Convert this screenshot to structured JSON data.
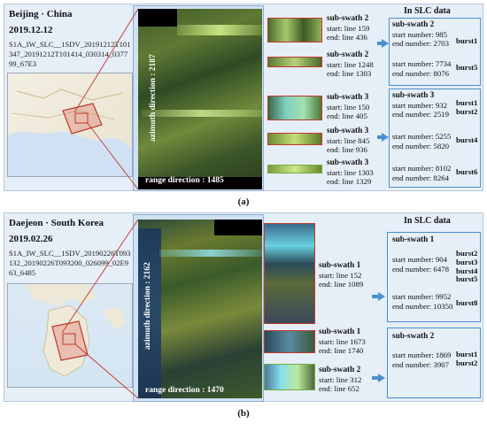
{
  "panels": [
    {
      "caption": "(a)",
      "location": "Beijing · China",
      "date": "2019.12.12",
      "filename": "S1A_IW_SLC__1SDV_20191212T101347_20191212T101414_030314_037799_67E3",
      "azimuth_label": "azimuth direction : 2187",
      "range_label": "range direction : 1485",
      "slc_title": "In SLC data",
      "subswaths": [
        {
          "title": "sub-swath 2",
          "start": "start: line 159",
          "end": "end: line 436"
        },
        {
          "title": "sub-swath 2",
          "start": "start: line 1248",
          "end": "end: line 1303"
        },
        {
          "title": "sub-swath 3",
          "start": "start: line 150",
          "end": "end: line 405"
        },
        {
          "title": "sub-swath 3",
          "start": "start: line 845",
          "end": "end: line 936"
        },
        {
          "title": "sub-swath 3",
          "start": "start: line 1303",
          "end": "end: line 1329"
        }
      ],
      "slc_groups": [
        {
          "title": "sub-swath 2",
          "entries": [
            {
              "start": "start number: 985",
              "end": "end number: 2703",
              "burst": "burst1"
            },
            {
              "start": "start number: 7734",
              "end": "end number: 8076",
              "burst": "burst5"
            }
          ]
        },
        {
          "title": "sub-swath 3",
          "entries": [
            {
              "start": "start number: 932",
              "end": "end number: 2519",
              "burst": "burst1\nburst2"
            },
            {
              "start": "start number: 5255",
              "end": "end number: 5820",
              "burst": "burst4"
            },
            {
              "start": "start number: 8102",
              "end": "end number: 8264",
              "burst": "burst6"
            }
          ]
        }
      ]
    },
    {
      "caption": "(b)",
      "location": "Daejeon · South Korea",
      "date": "2019.02.26",
      "filename": "S1A_IW_SLC__1SDV_20190226T093132_20190226T093200_026099_02E963_6485",
      "azimuth_label": "azimuth direction : 2162",
      "range_label": "range direction : 1470",
      "slc_title": "In SLC data",
      "subswaths": [
        {
          "title": "sub-swath 1",
          "start": "start: line 152",
          "end": "end: line 1089"
        },
        {
          "title": "sub-swath 1",
          "start": "start: line 1673",
          "end": "end: line 1740"
        },
        {
          "title": "sub-swath 2",
          "start": "start: line 312",
          "end": "end: line 652"
        }
      ],
      "slc_groups": [
        {
          "title": "sub-swath 1",
          "entries": [
            {
              "start": "start number: 904",
              "end": "end number: 6478",
              "burst": "burst2\nburst3\nburst4\nburst5"
            },
            {
              "start": "start number: 9952",
              "end": "end number: 10350",
              "burst": "burst8"
            }
          ]
        },
        {
          "title": "sub-swath 2",
          "entries": [
            {
              "start": "start number: 1869",
              "end": "end number: 3907",
              "burst": "burst1\nburst2"
            }
          ]
        }
      ]
    }
  ],
  "colors": {
    "panel_bg": "#e6eef8",
    "frame_blue": "#4a8fd1",
    "crop_red": "#c0392b",
    "crop_green": "#6fae3a"
  }
}
